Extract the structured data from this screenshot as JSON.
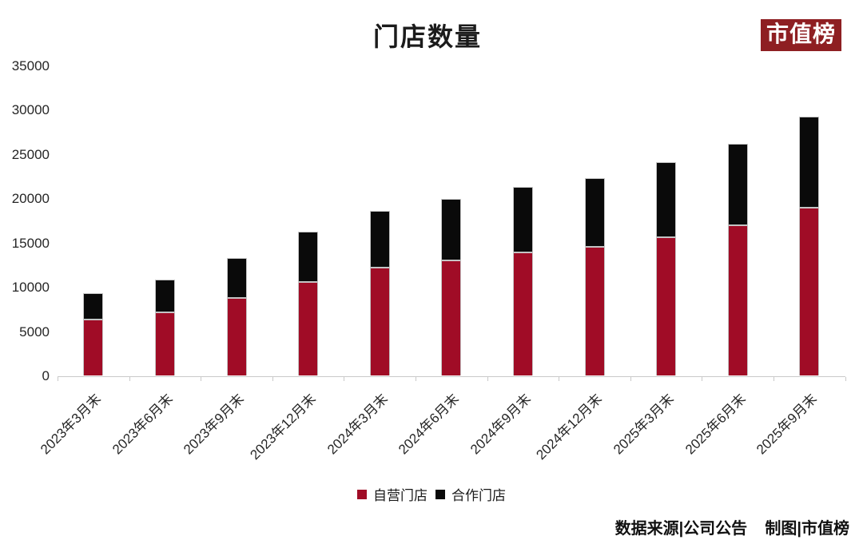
{
  "title": "门店数量",
  "logo": "市值榜",
  "footer": "数据来源|公司公告    制图|市值榜",
  "colors": {
    "self_operated": "#a00c26",
    "partnership": "#0a0a0a",
    "logo_bg": "#8e1f22",
    "axis": "#c9c9c9"
  },
  "chart_data": {
    "type": "bar",
    "stacked": true,
    "title": "门店数量",
    "categories": [
      "2023年3月末",
      "2023年6月末",
      "2023年9月末",
      "2023年12月末",
      "2024年3月末",
      "2024年6月末",
      "2024年9月末",
      "2024年12月末",
      "2025年3月末",
      "2025年6月末",
      "2025年9月末"
    ],
    "series": [
      {
        "name": "自营门店",
        "color": "#a00c26",
        "values": [
          6310,
          7188,
          8807,
          10598,
          12199,
          13056,
          13936,
          14591,
          15615,
          16938,
          18926
        ]
      },
      {
        "name": "合作门店",
        "color": "#0a0a0a",
        "values": [
          3041,
          3648,
          4466,
          5620,
          6391,
          6905,
          7407,
          7749,
          8482,
          9268,
          10288
        ]
      }
    ],
    "ylim": [
      0,
      35000
    ],
    "yticks": [
      "0",
      "5000",
      "10000",
      "15000",
      "20000",
      "25000",
      "30000",
      "35000"
    ],
    "ytick_step": 5000,
    "grid": false,
    "legend_position": "bottom"
  }
}
